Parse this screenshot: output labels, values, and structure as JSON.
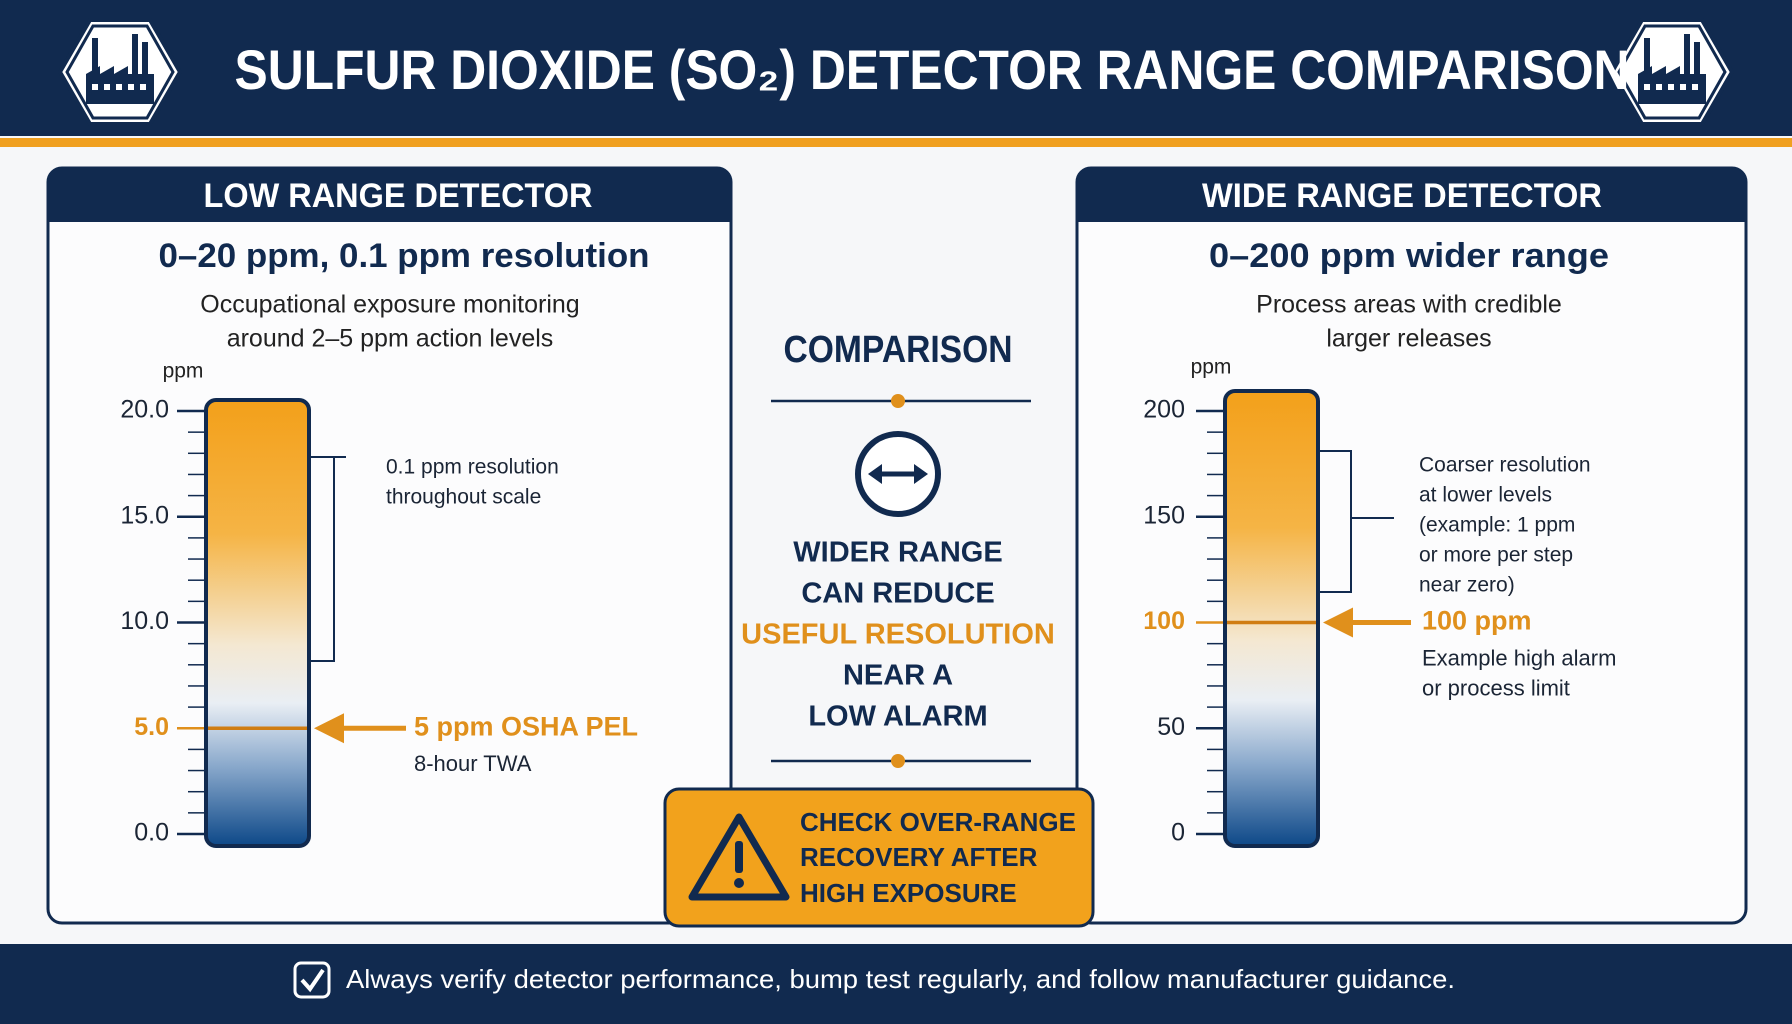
{
  "header": {
    "title": "SULFUR DIOXIDE (SO₂) DETECTOR RANGE COMPARISON"
  },
  "panels": [
    {
      "title": "LOW RANGE DETECTOR",
      "range": "0–20 ppm, 0.1 ppm resolution",
      "description": [
        "Occupational exposure monitoring",
        "around 2–5 ppm action levels"
      ],
      "unit": "ppm",
      "ylim": [
        0,
        20
      ],
      "yticks": [
        {
          "value": 0,
          "label": "0.0"
        },
        {
          "value": 5,
          "label": "5.0"
        },
        {
          "value": 10,
          "label": "10.0"
        },
        {
          "value": 15,
          "label": "15.0"
        },
        {
          "value": 20,
          "label": "20.0"
        }
      ],
      "bracket_note": [
        "0.1 ppm resolution",
        "throughout scale"
      ],
      "marker": {
        "value": 5,
        "label": "5 ppm OSHA PEL",
        "note": [
          "8-hour TWA"
        ]
      }
    },
    {
      "title": "WIDE RANGE DETECTOR",
      "range": "0–200 ppm wider range",
      "description": [
        "Process areas with credible",
        "larger releases"
      ],
      "unit": "ppm",
      "ylim": [
        0,
        200
      ],
      "yticks": [
        0,
        50,
        100,
        150,
        200
      ],
      "bracket_note": [
        "Coarser resolution",
        "at lower levels",
        "(example: 1 ppm",
        "or more per step",
        "near zero)"
      ],
      "marker": {
        "value": 100,
        "label": "100 ppm",
        "note": [
          "Example high alarm",
          "or process limit"
        ]
      }
    }
  ],
  "comparison": {
    "title": "COMPARISON",
    "lines": [
      {
        "text": "WIDER RANGE",
        "color": "#112a4f"
      },
      {
        "text": "CAN REDUCE",
        "color": "#112a4f"
      },
      {
        "text": "USEFUL RESOLUTION",
        "color": "#e0901c"
      },
      {
        "text": "NEAR A",
        "color": "#112a4f"
      },
      {
        "text": "LOW ALARM",
        "color": "#112a4f"
      }
    ]
  },
  "warning": [
    "CHECK OVER-RANGE",
    "RECOVERY AFTER",
    "HIGH EXPOSURE"
  ],
  "footer": "Always verify detector performance, bump test regularly, and follow manufacturer guidance."
}
